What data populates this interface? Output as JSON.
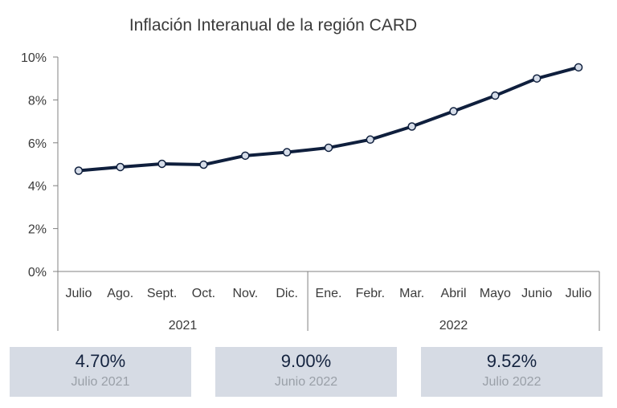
{
  "chart_data": {
    "type": "line",
    "title": "Inflación Interanual de la región CARD",
    "xlabel": "",
    "ylabel": "",
    "ylim": [
      0,
      10
    ],
    "y_ticks": [
      "0%",
      "2%",
      "4%",
      "6%",
      "8%",
      "10%"
    ],
    "grid": false,
    "categories": [
      "Julio",
      "Ago.",
      "Sept.",
      "Oct.",
      "Nov.",
      "Dic.",
      "Ene.",
      "Febr.",
      "Mar.",
      "Abril",
      "Mayo",
      "Junio",
      "Julio"
    ],
    "groups": [
      {
        "label": "2021",
        "count": 6
      },
      {
        "label": "2022",
        "count": 7
      }
    ],
    "series": [
      {
        "values": [
          4.7,
          4.87,
          5.02,
          4.98,
          5.4,
          5.56,
          5.77,
          6.15,
          6.76,
          7.47,
          8.2,
          9.0,
          9.52
        ]
      }
    ]
  },
  "colors": {
    "line": "#0f1f3d",
    "marker_fill": "#d6dde9",
    "axis": "#808080",
    "card_bg": "#d6dbe4"
  },
  "cards": [
    {
      "value": "4.70%",
      "label": "Julio 2021"
    },
    {
      "value": "9.00%",
      "label": "Junio 2022"
    },
    {
      "value": "9.52%",
      "label": "Julio 2022"
    }
  ]
}
